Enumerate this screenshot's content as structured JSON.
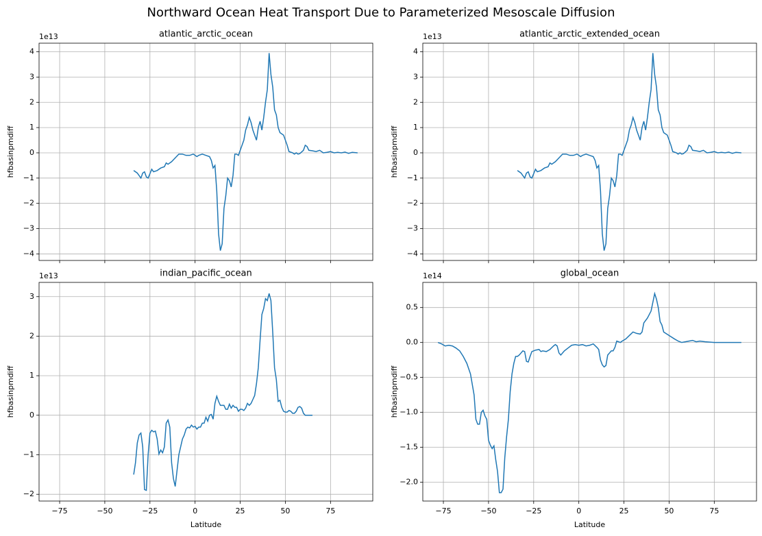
{
  "title": "Northward Ocean Heat Transport Due to Parameterized Mesoscale Diffusion",
  "chart_data": [
    {
      "type": "line",
      "title": "atlantic_arctic_ocean",
      "ylabel": "hfbasinpmdiff",
      "offset_label": "1e13",
      "show_xtick_labels": false,
      "grid": true,
      "color": "#1f77b4",
      "x": [
        -34,
        -32,
        -30,
        -29,
        -28,
        -27,
        -26,
        -24,
        -23,
        -21,
        -19,
        -17,
        -16,
        -15,
        -13,
        -11,
        -9,
        -7,
        -5,
        -3,
        -1,
        0,
        1,
        2,
        4,
        6,
        8,
        9,
        10,
        11,
        12,
        13,
        14,
        15,
        16,
        17,
        18,
        19,
        20,
        21,
        22,
        23,
        24,
        25,
        27,
        28,
        29,
        30,
        31,
        32,
        33,
        34,
        35,
        36,
        37,
        38,
        39,
        40,
        41,
        42,
        43,
        44,
        45,
        46,
        47,
        49,
        50,
        51,
        52,
        54,
        55,
        56,
        57,
        58,
        60,
        61,
        62,
        63,
        65,
        67,
        69,
        71,
        73,
        75,
        77,
        79,
        81,
        83,
        85,
        87,
        90
      ],
      "values": [
        -0.7,
        -0.8,
        -1.0,
        -0.8,
        -0.75,
        -0.95,
        -1.0,
        -0.65,
        -0.75,
        -0.7,
        -0.6,
        -0.55,
        -0.4,
        -0.45,
        -0.35,
        -0.2,
        -0.05,
        -0.05,
        -0.1,
        -0.1,
        -0.05,
        -0.1,
        -0.15,
        -0.1,
        -0.05,
        -0.1,
        -0.15,
        -0.3,
        -0.6,
        -0.5,
        -1.5,
        -3.2,
        -3.87,
        -3.6,
        -2.2,
        -1.7,
        -1.0,
        -1.1,
        -1.35,
        -0.9,
        -0.05,
        -0.05,
        -0.1,
        0.1,
        0.5,
        0.9,
        1.1,
        1.4,
        1.2,
        0.9,
        0.7,
        0.5,
        1.0,
        1.25,
        0.9,
        1.4,
        2.0,
        2.5,
        3.95,
        3.1,
        2.6,
        1.7,
        1.5,
        1.0,
        0.8,
        0.7,
        0.5,
        0.3,
        0.05,
        0.0,
        -0.05,
        0.0,
        -0.05,
        -0.03,
        0.1,
        0.3,
        0.25,
        0.1,
        0.08,
        0.05,
        0.1,
        0.0,
        0.02,
        0.05,
        0.0,
        0.02,
        0.0,
        0.03,
        -0.02,
        0.02,
        0.0
      ],
      "xlim": [
        -86.4,
        98.4
      ],
      "xticks": [
        {
          "value": -75,
          "label": "−75"
        },
        {
          "value": -50,
          "label": "−50"
        },
        {
          "value": -25,
          "label": "−25"
        },
        0,
        25,
        50,
        75
      ],
      "ylim": [
        -4.26,
        4.34
      ],
      "yticks": [
        {
          "value": -4,
          "label": "−4"
        },
        {
          "value": -3,
          "label": "−3"
        },
        {
          "value": -2,
          "label": "−2"
        },
        {
          "value": -1,
          "label": "−1"
        },
        0,
        1,
        2,
        3,
        4
      ]
    },
    {
      "type": "line",
      "title": "atlantic_arctic_extended_ocean",
      "ylabel": "hfbasinpmdiff",
      "offset_label": "1e13",
      "show_xtick_labels": false,
      "grid": true,
      "color": "#1f77b4",
      "x": [
        -34,
        -32,
        -30,
        -29,
        -28,
        -27,
        -26,
        -24,
        -23,
        -21,
        -19,
        -17,
        -16,
        -15,
        -13,
        -11,
        -9,
        -7,
        -5,
        -3,
        -1,
        0,
        1,
        2,
        4,
        6,
        8,
        9,
        10,
        11,
        12,
        13,
        14,
        15,
        16,
        17,
        18,
        19,
        20,
        21,
        22,
        23,
        24,
        25,
        27,
        28,
        29,
        30,
        31,
        32,
        33,
        34,
        35,
        36,
        37,
        38,
        39,
        40,
        41,
        42,
        43,
        44,
        45,
        46,
        47,
        49,
        50,
        51,
        52,
        54,
        55,
        56,
        57,
        58,
        60,
        61,
        62,
        63,
        65,
        67,
        69,
        71,
        73,
        75,
        77,
        79,
        81,
        83,
        85,
        87,
        90
      ],
      "values": [
        -0.7,
        -0.8,
        -1.0,
        -0.8,
        -0.75,
        -0.95,
        -1.0,
        -0.65,
        -0.75,
        -0.7,
        -0.6,
        -0.55,
        -0.4,
        -0.45,
        -0.35,
        -0.2,
        -0.05,
        -0.05,
        -0.1,
        -0.1,
        -0.05,
        -0.1,
        -0.15,
        -0.1,
        -0.05,
        -0.1,
        -0.15,
        -0.3,
        -0.6,
        -0.5,
        -1.5,
        -3.2,
        -3.87,
        -3.6,
        -2.2,
        -1.7,
        -1.0,
        -1.1,
        -1.35,
        -0.9,
        -0.05,
        -0.05,
        -0.1,
        0.1,
        0.5,
        0.9,
        1.1,
        1.4,
        1.2,
        0.9,
        0.7,
        0.5,
        1.0,
        1.25,
        0.9,
        1.4,
        2.0,
        2.5,
        3.95,
        3.1,
        2.6,
        1.7,
        1.5,
        1.0,
        0.8,
        0.7,
        0.5,
        0.3,
        0.05,
        0.0,
        -0.05,
        0.0,
        -0.05,
        -0.03,
        0.1,
        0.3,
        0.25,
        0.1,
        0.08,
        0.05,
        0.1,
        0.0,
        0.02,
        0.05,
        0.0,
        0.02,
        0.0,
        0.03,
        -0.02,
        0.02,
        0.0
      ],
      "xlim": [
        -86.4,
        98.4
      ],
      "xticks": [
        {
          "value": -75,
          "label": "−75"
        },
        {
          "value": -50,
          "label": "−50"
        },
        {
          "value": -25,
          "label": "−25"
        },
        0,
        25,
        50,
        75
      ],
      "ylim": [
        -4.26,
        4.34
      ],
      "yticks": [
        {
          "value": -4,
          "label": "−4"
        },
        {
          "value": -3,
          "label": "−3"
        },
        {
          "value": -2,
          "label": "−2"
        },
        {
          "value": -1,
          "label": "−1"
        },
        0,
        1,
        2,
        3,
        4
      ]
    },
    {
      "type": "line",
      "title": "indian_pacific_ocean",
      "ylabel": "hfbasinpmdiff",
      "xlabel": "Latitude",
      "offset_label": "1e13",
      "show_xtick_labels": true,
      "grid": true,
      "color": "#1f77b4",
      "x": [
        -34,
        -33,
        -32,
        -31,
        -30,
        -29,
        -28,
        -27,
        -26,
        -25,
        -24,
        -23,
        -22,
        -21,
        -20,
        -19,
        -18,
        -17,
        -16,
        -15,
        -14,
        -13,
        -12,
        -11,
        -10,
        -9,
        -8,
        -7,
        -6,
        -5,
        -4,
        -3,
        -2,
        -1,
        0,
        1,
        2,
        3,
        4,
        5,
        6,
        7,
        8,
        9,
        10,
        11,
        12,
        13,
        14,
        16,
        17,
        18,
        19,
        20,
        21,
        22,
        23,
        24,
        25,
        26,
        27,
        28,
        29,
        30,
        31,
        32,
        33,
        34,
        35,
        36,
        37,
        38,
        39,
        40,
        41,
        42,
        43,
        44,
        45,
        46,
        47,
        48,
        49,
        50,
        51,
        52,
        53,
        54,
        55,
        56,
        57,
        58,
        59,
        60,
        61,
        63,
        65
      ],
      "values": [
        -1.5,
        -1.2,
        -0.7,
        -0.5,
        -0.45,
        -0.8,
        -1.88,
        -1.9,
        -1.0,
        -0.45,
        -0.38,
        -0.42,
        -0.4,
        -0.6,
        -0.98,
        -0.88,
        -0.95,
        -0.8,
        -0.2,
        -0.12,
        -0.3,
        -1.2,
        -1.6,
        -1.8,
        -1.4,
        -1.0,
        -0.8,
        -0.6,
        -0.5,
        -0.35,
        -0.3,
        -0.32,
        -0.25,
        -0.3,
        -0.28,
        -0.35,
        -0.3,
        -0.3,
        -0.2,
        -0.2,
        -0.05,
        -0.15,
        0.0,
        0.02,
        -0.1,
        0.3,
        0.48,
        0.35,
        0.25,
        0.25,
        0.15,
        0.15,
        0.28,
        0.18,
        0.25,
        0.2,
        0.2,
        0.1,
        0.15,
        0.15,
        0.12,
        0.18,
        0.3,
        0.25,
        0.3,
        0.4,
        0.5,
        0.8,
        1.2,
        1.9,
        2.55,
        2.7,
        2.95,
        2.9,
        3.08,
        2.9,
        2.1,
        1.2,
        0.9,
        0.35,
        0.38,
        0.2,
        0.1,
        0.08,
        0.08,
        0.12,
        0.1,
        0.05,
        0.05,
        0.1,
        0.2,
        0.22,
        0.18,
        0.05,
        0.0,
        0.0,
        0.0
      ],
      "xlim": [
        -86.4,
        98.4
      ],
      "xticks": [
        {
          "value": -75,
          "label": "−75"
        },
        {
          "value": -50,
          "label": "−50"
        },
        {
          "value": -25,
          "label": "−25"
        },
        0,
        25,
        50,
        75
      ],
      "ylim": [
        -2.17,
        3.36
      ],
      "yticks": [
        {
          "value": -2,
          "label": "−2"
        },
        {
          "value": -1,
          "label": "−1"
        },
        0,
        1,
        2,
        3
      ]
    },
    {
      "type": "line",
      "title": "global_ocean",
      "ylabel": "hfbasinpmdiff",
      "xlabel": "Latitude",
      "offset_label": "1e14",
      "show_xtick_labels": true,
      "grid": true,
      "color": "#1f77b4",
      "x": [
        -78,
        -76,
        -74,
        -72,
        -70,
        -68,
        -66,
        -64,
        -62,
        -60,
        -58,
        -57,
        -56,
        -55,
        -54,
        -53,
        -52,
        -51,
        -50,
        -49,
        -48,
        -47,
        -46,
        -45,
        -44,
        -43,
        -42,
        -41,
        -40,
        -39,
        -38,
        -37,
        -36,
        -35,
        -34,
        -33,
        -32,
        -31,
        -30,
        -29,
        -28,
        -27,
        -26,
        -24,
        -22,
        -21,
        -20,
        -18,
        -16,
        -14,
        -13,
        -12,
        -11,
        -10,
        -8,
        -6,
        -4,
        -2,
        0,
        2,
        4,
        6,
        8,
        10,
        11,
        12,
        13,
        14,
        15,
        16,
        17,
        18,
        19,
        20,
        21,
        22,
        23,
        24,
        26,
        28,
        30,
        32,
        34,
        35,
        36,
        38,
        40,
        42,
        43,
        44,
        45,
        46,
        47,
        50,
        53,
        55,
        57,
        59,
        61,
        63,
        65,
        67,
        70,
        75,
        80,
        85,
        90
      ],
      "values": [
        0.0,
        -0.02,
        -0.05,
        -0.04,
        -0.05,
        -0.08,
        -0.12,
        -0.2,
        -0.3,
        -0.45,
        -0.75,
        -1.1,
        -1.17,
        -1.17,
        -1.0,
        -0.97,
        -1.05,
        -1.1,
        -1.4,
        -1.47,
        -1.52,
        -1.48,
        -1.68,
        -1.85,
        -2.15,
        -2.15,
        -2.1,
        -1.65,
        -1.35,
        -1.1,
        -0.7,
        -0.45,
        -0.3,
        -0.2,
        -0.2,
        -0.18,
        -0.15,
        -0.12,
        -0.13,
        -0.27,
        -0.28,
        -0.2,
        -0.13,
        -0.11,
        -0.1,
        -0.13,
        -0.12,
        -0.13,
        -0.1,
        -0.05,
        -0.03,
        -0.05,
        -0.15,
        -0.18,
        -0.12,
        -0.08,
        -0.04,
        -0.03,
        -0.04,
        -0.03,
        -0.05,
        -0.04,
        -0.02,
        -0.07,
        -0.1,
        -0.25,
        -0.32,
        -0.35,
        -0.33,
        -0.18,
        -0.15,
        -0.12,
        -0.12,
        -0.07,
        0.02,
        0.01,
        0.0,
        0.02,
        0.05,
        0.1,
        0.15,
        0.13,
        0.12,
        0.15,
        0.28,
        0.35,
        0.45,
        0.7,
        0.62,
        0.5,
        0.3,
        0.25,
        0.15,
        0.1,
        0.05,
        0.02,
        0.0,
        0.01,
        0.02,
        0.03,
        0.01,
        0.02,
        0.01,
        0.0,
        0.0,
        0.0,
        0.0
      ],
      "xlim": [
        -86.4,
        98.4
      ],
      "xticks": [
        {
          "value": -75,
          "label": "−75"
        },
        {
          "value": -50,
          "label": "−50"
        },
        {
          "value": -25,
          "label": "−25"
        },
        0,
        25,
        50,
        75
      ],
      "ylim": [
        -2.27,
        0.86
      ],
      "yticks": [
        {
          "value": -2,
          "label": "−2.0"
        },
        {
          "value": -1.5,
          "label": "−1.5"
        },
        {
          "value": -1,
          "label": "−1.0"
        },
        {
          "value": -0.5,
          "label": "−0.5"
        },
        {
          "value": 0,
          "label": "0.0"
        },
        {
          "value": 0.5,
          "label": "0.5"
        }
      ]
    }
  ]
}
